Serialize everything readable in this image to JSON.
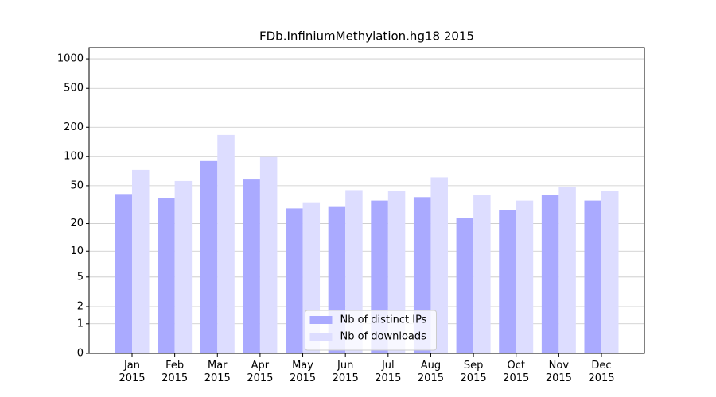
{
  "chart_data": {
    "type": "bar",
    "title": "FDb.InfiniumMethylation.hg18 2015",
    "categories": [
      "Jan\n2015",
      "Feb\n2015",
      "Mar\n2015",
      "Apr\n2015",
      "May\n2015",
      "Jun\n2015",
      "Jul\n2015",
      "Aug\n2015",
      "Sep\n2015",
      "Oct\n2015",
      "Nov\n2015",
      "Dec\n2015"
    ],
    "series": [
      {
        "name": "Nb of distinct IPs",
        "color": "#aaaaff",
        "values": [
          41,
          37,
          90,
          58,
          29,
          30,
          35,
          38,
          23,
          28,
          40,
          35
        ]
      },
      {
        "name": "Nb of downloads",
        "color": "#ddddff",
        "values": [
          73,
          56,
          167,
          99,
          33,
          45,
          44,
          61,
          40,
          35,
          49,
          44
        ]
      }
    ],
    "yscale": "log1p",
    "ylim": [
      0,
      1300
    ],
    "yticks": [
      0,
      1,
      2,
      5,
      10,
      20,
      50,
      100,
      200,
      500,
      1000
    ],
    "grid": true,
    "legend": "lower center"
  }
}
